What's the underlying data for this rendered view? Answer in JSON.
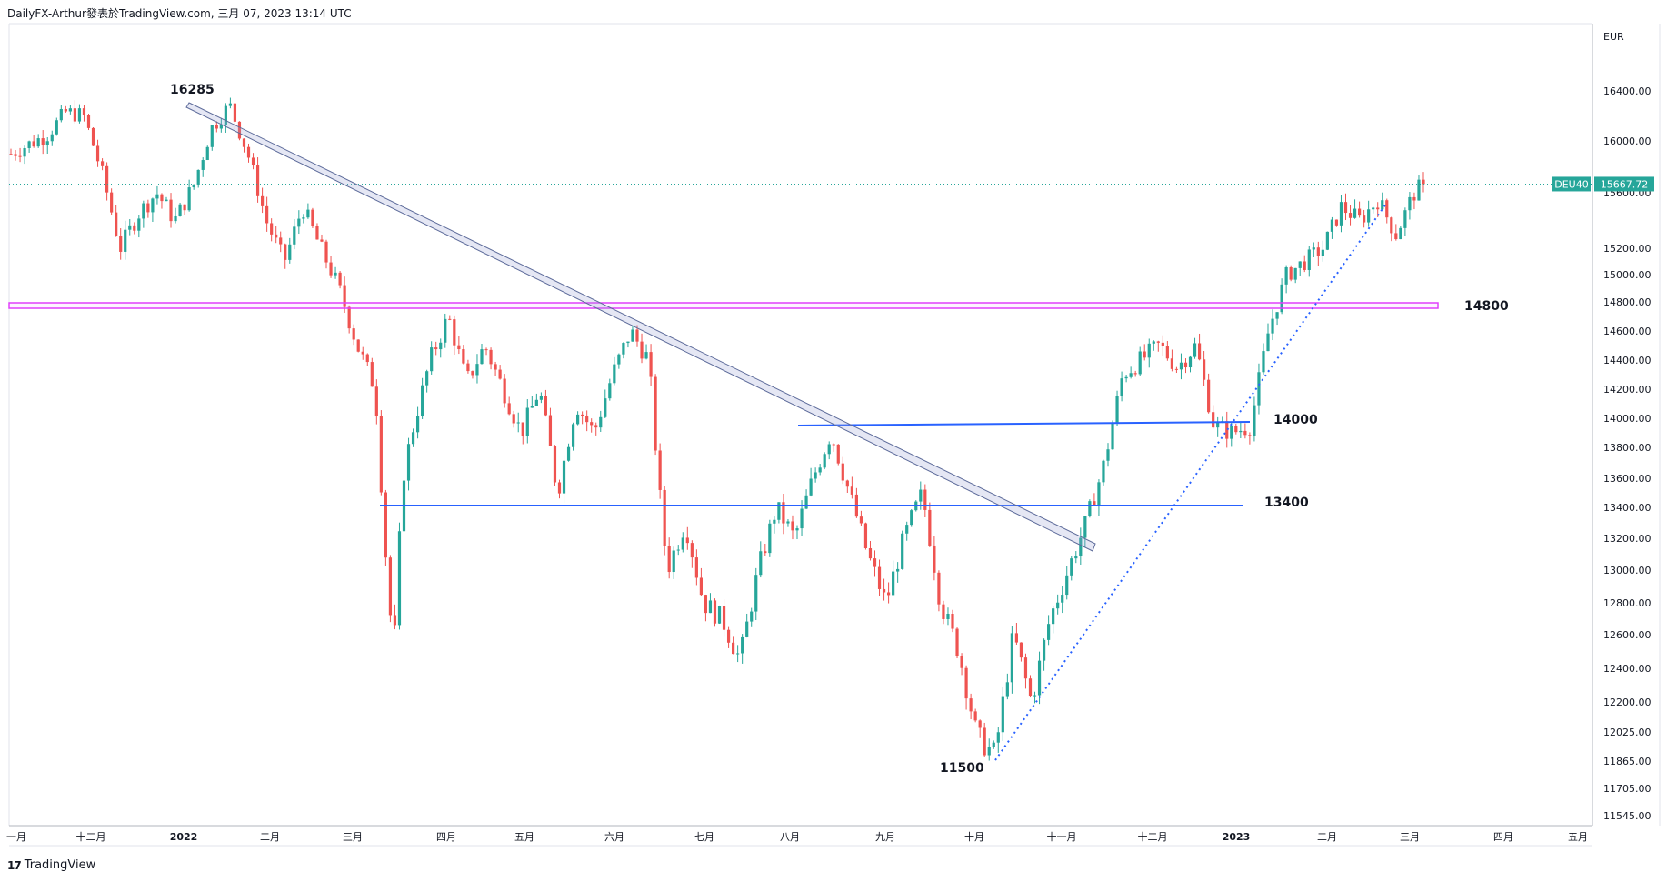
{
  "header": {
    "text": "DailyFX-Arthur發表於TradingView.com, 三月 07, 2023 13:14 UTC"
  },
  "footer": {
    "logo_label": "TradingView"
  },
  "colors": {
    "up": "#26a69a",
    "down": "#ef5350",
    "pink": "#e040fb",
    "blue": "#2962ff",
    "trend": "#5d6b9a",
    "last_price": "#26a69a"
  },
  "chart_data": {
    "type": "candlestick",
    "symbol": "DEU40",
    "last_price": "15667.72",
    "currency": "EUR",
    "y_ticks": [
      "16400.00",
      "16000.00",
      "15600.00",
      "15200.00",
      "15000.00",
      "14800.00",
      "14600.00",
      "14400.00",
      "14200.00",
      "14000.00",
      "13800.00",
      "13600.00",
      "13400.00",
      "13200.00",
      "13000.00",
      "12800.00",
      "12600.00",
      "12400.00",
      "12200.00",
      "12025.00",
      "11865.00",
      "11705.00",
      "11545.00"
    ],
    "x_ticks": [
      "一月",
      "十二月",
      "2022",
      "二月",
      "三月",
      "四月",
      "五月",
      "六月",
      "七月",
      "八月",
      "九月",
      "十月",
      "十一月",
      "十二月",
      "2023",
      "二月",
      "三月",
      "四月",
      "五月"
    ],
    "annotations": [
      "16285",
      "14800",
      "14000",
      "13400",
      "11500"
    ],
    "key_levels": [
      16285,
      14800,
      14000,
      13400,
      11500
    ],
    "series_path": [
      [
        0,
        15900
      ],
      [
        4,
        16050
      ],
      [
        6,
        16230
      ],
      [
        8,
        16200
      ],
      [
        10,
        15750
      ],
      [
        12,
        15200
      ],
      [
        14,
        15450
      ],
      [
        16,
        15600
      ],
      [
        18,
        15400
      ],
      [
        20,
        15650
      ],
      [
        22,
        16100
      ],
      [
        24,
        16285
      ],
      [
        26,
        15900
      ],
      [
        28,
        15400
      ],
      [
        30,
        15100
      ],
      [
        32,
        15500
      ],
      [
        34,
        15200
      ],
      [
        36,
        14900
      ],
      [
        38,
        14500
      ],
      [
        40,
        14200
      ],
      [
        41,
        13200
      ],
      [
        42,
        12450
      ],
      [
        43,
        13600
      ],
      [
        44,
        13900
      ],
      [
        46,
        14400
      ],
      [
        48,
        14700
      ],
      [
        50,
        14250
      ],
      [
        52,
        14500
      ],
      [
        54,
        14200
      ],
      [
        56,
        13900
      ],
      [
        58,
        14200
      ],
      [
        60,
        13500
      ],
      [
        62,
        14100
      ],
      [
        64,
        13900
      ],
      [
        66,
        14300
      ],
      [
        68,
        14600
      ],
      [
        70,
        14400
      ],
      [
        71,
        13600
      ],
      [
        72,
        13000
      ],
      [
        74,
        13300
      ],
      [
        76,
        12800
      ],
      [
        78,
        12700
      ],
      [
        80,
        12450
      ],
      [
        82,
        13000
      ],
      [
        84,
        13400
      ],
      [
        86,
        13200
      ],
      [
        88,
        13600
      ],
      [
        90,
        13900
      ],
      [
        92,
        13500
      ],
      [
        94,
        13100
      ],
      [
        96,
        12800
      ],
      [
        98,
        13200
      ],
      [
        100,
        13500
      ],
      [
        102,
        12800
      ],
      [
        104,
        12500
      ],
      [
        106,
        12000
      ],
      [
        108,
        11900
      ],
      [
        110,
        12600
      ],
      [
        112,
        12200
      ],
      [
        114,
        12700
      ],
      [
        116,
        13000
      ],
      [
        118,
        13300
      ],
      [
        120,
        13700
      ],
      [
        122,
        14300
      ],
      [
        124,
        14400
      ],
      [
        126,
        14500
      ],
      [
        128,
        14350
      ],
      [
        130,
        14500
      ],
      [
        132,
        13950
      ],
      [
        134,
        13900
      ],
      [
        136,
        13950
      ],
      [
        138,
        14600
      ],
      [
        140,
        15000
      ],
      [
        142,
        15100
      ],
      [
        144,
        15200
      ],
      [
        146,
        15500
      ],
      [
        148,
        15400
      ],
      [
        150,
        15550
      ],
      [
        152,
        15300
      ],
      [
        154,
        15600
      ],
      [
        155,
        15667
      ]
    ]
  }
}
